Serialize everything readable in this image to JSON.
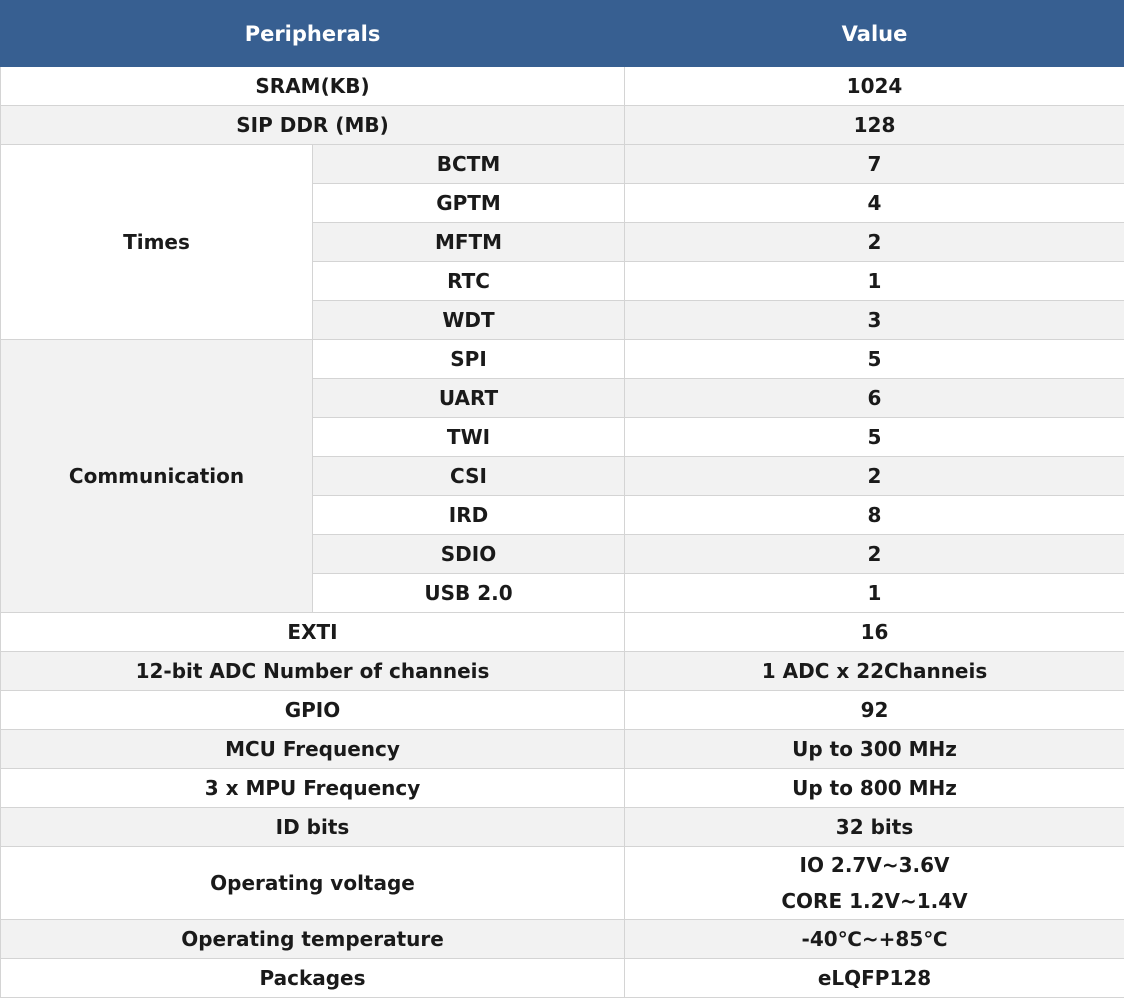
{
  "table": {
    "header": [
      "Peripherals",
      "Value"
    ],
    "rows": [
      {
        "label": "SRAM(KB)",
        "value": "1024"
      },
      {
        "label": "SIP DDR (MB)",
        "value": "128"
      },
      {
        "group": "Times",
        "items": [
          {
            "label": "BCTM",
            "value": "7"
          },
          {
            "label": "GPTM",
            "value": "4"
          },
          {
            "label": "MFTM",
            "value": "2"
          },
          {
            "label": "RTC",
            "value": "1"
          },
          {
            "label": "WDT",
            "value": "3"
          }
        ]
      },
      {
        "group": "Communication",
        "items": [
          {
            "label": "SPI",
            "value": "5"
          },
          {
            "label": "UART",
            "value": "6"
          },
          {
            "label": "TWI",
            "value": "5"
          },
          {
            "label": "CSI",
            "value": "2"
          },
          {
            "label": "IRD",
            "value": "8"
          },
          {
            "label": "SDIO",
            "value": "2"
          },
          {
            "label": "USB 2.0",
            "value": "1"
          }
        ]
      },
      {
        "label": "EXTI",
        "value": "16"
      },
      {
        "label": "12-bit ADC Number of channeis",
        "value": "1 ADC x 22Channeis"
      },
      {
        "label": "GPIO",
        "value": "92"
      },
      {
        "label": "MCU Frequency",
        "value": "Up to 300 MHz"
      },
      {
        "label": "3 x MPU Frequency",
        "value": "Up to 800 MHz"
      },
      {
        "label": "ID bits",
        "value": "32 bits"
      },
      {
        "label": "Operating voltage",
        "value": [
          "IO 2.7V~3.6V",
          "CORE 1.2V~1.4V"
        ]
      },
      {
        "label": "Operating temperature",
        "value": "-40℃~+85℃"
      },
      {
        "label": "Packages",
        "value": "eLQFP128"
      }
    ]
  }
}
